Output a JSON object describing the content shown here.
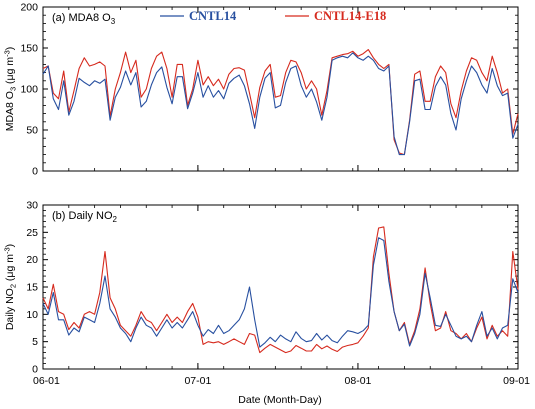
{
  "colors": {
    "cntl": "#2850a0",
    "e18": "#d62a1e"
  },
  "xaxis": {
    "label": "Date (Month-Day)",
    "ticks": [
      {
        "day": 0,
        "label": "06-01"
      },
      {
        "day": 30,
        "label": "07-01"
      },
      {
        "day": 61,
        "label": "08-01"
      },
      {
        "day": 92,
        "label": "09-01"
      }
    ]
  },
  "chart_data": [
    {
      "type": "line",
      "panel_label": "(a) MDA8 O",
      "panel_label_sub": "3",
      "ylabel": {
        "main": "MDA8 O",
        "sub": "3",
        "units": " (μg m",
        "sup": "-3",
        "close": ")"
      },
      "ylim": [
        0,
        200
      ],
      "yticks": [
        "0",
        "50",
        "100",
        "150",
        "200"
      ],
      "grid": false,
      "legend_position": "top",
      "series": [
        {
          "name": "CNTL14",
          "color": "#2850a0",
          "values": [
            118,
            128,
            88,
            75,
            110,
            68,
            85,
            113,
            108,
            104,
            110,
            107,
            112,
            62,
            90,
            102,
            122,
            105,
            120,
            78,
            85,
            105,
            120,
            127,
            102,
            82,
            115,
            115,
            76,
            95,
            120,
            90,
            104,
            90,
            98,
            88,
            107,
            113,
            117,
            104,
            82,
            52,
            90,
            113,
            120,
            77,
            80,
            108,
            125,
            128,
            104,
            90,
            100,
            84,
            62,
            90,
            135,
            138,
            140,
            138,
            144,
            138,
            135,
            140,
            135,
            125,
            122,
            128,
            42,
            20,
            20,
            60,
            110,
            112,
            75,
            75,
            103,
            115,
            105,
            70,
            50,
            88,
            110,
            128,
            120,
            105,
            95,
            125,
            104,
            92,
            95,
            40,
            57
          ]
        },
        {
          "name": "CNTL14-E18",
          "color": "#d62a1e",
          "values": [
            125,
            128,
            95,
            88,
            122,
            72,
            98,
            125,
            138,
            128,
            130,
            133,
            128,
            67,
            100,
            120,
            145,
            120,
            135,
            90,
            100,
            125,
            140,
            145,
            125,
            90,
            130,
            130,
            80,
            100,
            135,
            105,
            115,
            104,
            112,
            100,
            118,
            125,
            126,
            123,
            95,
            65,
            102,
            122,
            130,
            90,
            92,
            120,
            135,
            133,
            120,
            100,
            110,
            100,
            68,
            98,
            138,
            140,
            142,
            143,
            146,
            140,
            143,
            148,
            138,
            130,
            125,
            130,
            38,
            22,
            20,
            62,
            118,
            122,
            85,
            85,
            115,
            128,
            120,
            82,
            65,
            98,
            122,
            138,
            135,
            120,
            110,
            140,
            120,
            95,
            100,
            45,
            70
          ]
        }
      ]
    },
    {
      "type": "line",
      "panel_label": "(b) Daily NO",
      "panel_label_sub": "2",
      "ylabel": {
        "main": "Daily NO",
        "sub": "2",
        "units": " (μg m",
        "sup": "-3",
        "close": ")"
      },
      "ylim": [
        0,
        30
      ],
      "yticks": [
        "0",
        "5",
        "10",
        "15",
        "20",
        "25",
        "30"
      ],
      "grid": false,
      "series": [
        {
          "name": "CNTL14",
          "color": "#2850a0",
          "values": [
            12,
            10,
            14,
            9,
            9,
            6.2,
            7.5,
            6.8,
            9.5,
            9,
            8.5,
            12,
            17,
            11,
            9.5,
            7.5,
            6.5,
            5,
            7.5,
            9.5,
            8,
            7.5,
            6,
            7.5,
            9,
            7.5,
            8.5,
            7.5,
            9,
            10.5,
            8,
            6,
            7.2,
            6.5,
            8,
            6.5,
            7,
            8,
            9,
            11,
            15,
            9,
            4,
            4.8,
            5.8,
            5,
            6.2,
            5.5,
            5,
            6.8,
            5.6,
            5,
            5.2,
            6.5,
            5.3,
            6.2,
            5.2,
            4.8,
            6,
            7,
            6.8,
            6.5,
            7,
            8,
            19,
            24,
            23.5,
            16,
            10.5,
            7,
            8.2,
            4.2,
            6.5,
            10,
            17.5,
            13,
            8,
            7.8,
            10,
            8,
            6,
            5.5,
            6,
            5,
            8,
            10.5,
            6,
            7.5,
            5.5,
            7.5,
            8,
            16.5,
            14
          ]
        },
        {
          "name": "CNTL14-E18",
          "color": "#d62a1e",
          "values": [
            13,
            11,
            15.5,
            10.5,
            10,
            7.2,
            8.5,
            7.5,
            10,
            10.5,
            10,
            14,
            21.5,
            13,
            11,
            8,
            7,
            6,
            8,
            10.5,
            9,
            8.5,
            7,
            8.5,
            10,
            8.5,
            9.5,
            8.5,
            10.5,
            12,
            9.5,
            4.5,
            5,
            4.8,
            5,
            4.5,
            5,
            5.5,
            5,
            4.5,
            6.5,
            6.2,
            3,
            3.8,
            4.5,
            4,
            3.5,
            3,
            3.3,
            4.3,
            3.8,
            3.3,
            3.3,
            4.5,
            3.7,
            4.2,
            3.6,
            3.2,
            4,
            4.3,
            4.5,
            4.8,
            6,
            7.5,
            20.5,
            25.8,
            26,
            17.5,
            10.5,
            7,
            8.5,
            4.5,
            7,
            11,
            18.5,
            12,
            7,
            7.5,
            10.5,
            7,
            6.5,
            5.5,
            6.5,
            5,
            7.5,
            9.5,
            5.5,
            8,
            6,
            7,
            6,
            21.5,
            14.5
          ]
        }
      ]
    }
  ]
}
